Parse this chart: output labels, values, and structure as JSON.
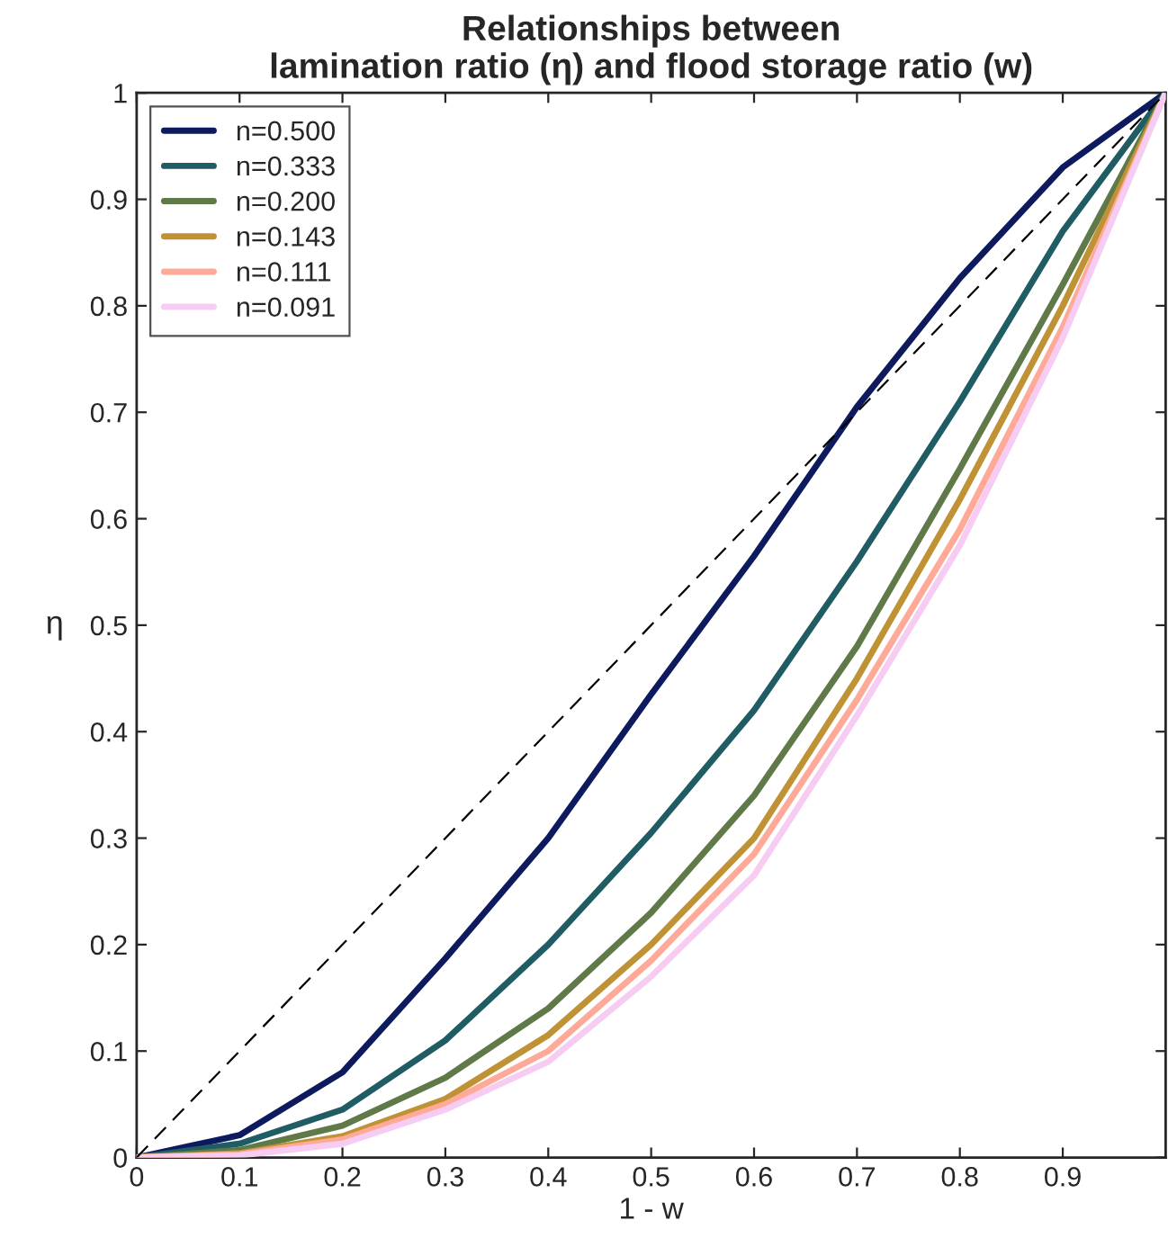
{
  "chart_data": {
    "type": "line",
    "title": "Relationships between\nlamination ratio (η) and flood storage ratio (w)",
    "xlabel": "1 - w",
    "ylabel": "η",
    "x": [
      0,
      0.1,
      0.2,
      0.3,
      0.4,
      0.5,
      0.6,
      0.7,
      0.8,
      0.9,
      1
    ],
    "series": [
      {
        "name": "n=0.500",
        "color": "#0d1b5e",
        "values": [
          0,
          0.021,
          0.08,
          0.187,
          0.3,
          0.435,
          0.565,
          0.705,
          0.826,
          0.93,
          1
        ]
      },
      {
        "name": "n=0.333",
        "color": "#1f5c63",
        "values": [
          0,
          0.013,
          0.045,
          0.11,
          0.2,
          0.305,
          0.42,
          0.56,
          0.71,
          0.87,
          1
        ]
      },
      {
        "name": "n=0.200",
        "color": "#5f7a48",
        "values": [
          0,
          0.007,
          0.03,
          0.075,
          0.14,
          0.23,
          0.34,
          0.48,
          0.647,
          0.82,
          1
        ]
      },
      {
        "name": "n=0.143",
        "color": "#bf9236",
        "values": [
          0,
          0.004,
          0.02,
          0.055,
          0.115,
          0.2,
          0.3,
          0.45,
          0.618,
          0.8,
          1
        ]
      },
      {
        "name": "n=0.111",
        "color": "#ffaa98",
        "values": [
          0,
          0.003,
          0.017,
          0.05,
          0.1,
          0.185,
          0.285,
          0.43,
          0.59,
          0.78,
          1
        ]
      },
      {
        "name": "n=0.091",
        "color": "#f7ccf2",
        "values": [
          0,
          0.002,
          0.013,
          0.045,
          0.09,
          0.17,
          0.265,
          0.415,
          0.575,
          0.77,
          1
        ]
      },
      {
        "color": "#000000",
        "line_style": "dashed",
        "x": [
          0,
          1
        ],
        "values": [
          0,
          1
        ]
      }
    ],
    "xlim": [
      0,
      1
    ],
    "xticks": [
      0,
      0.1,
      0.2,
      0.3,
      0.4,
      0.5,
      0.6,
      0.7,
      0.8,
      0.9
    ],
    "ylim": [
      0,
      1
    ],
    "yticks": [
      0,
      0.1,
      0.2,
      0.3,
      0.4,
      0.5,
      0.6,
      0.7,
      0.8,
      0.9,
      1
    ],
    "legend": "top left",
    "grid": false
  }
}
